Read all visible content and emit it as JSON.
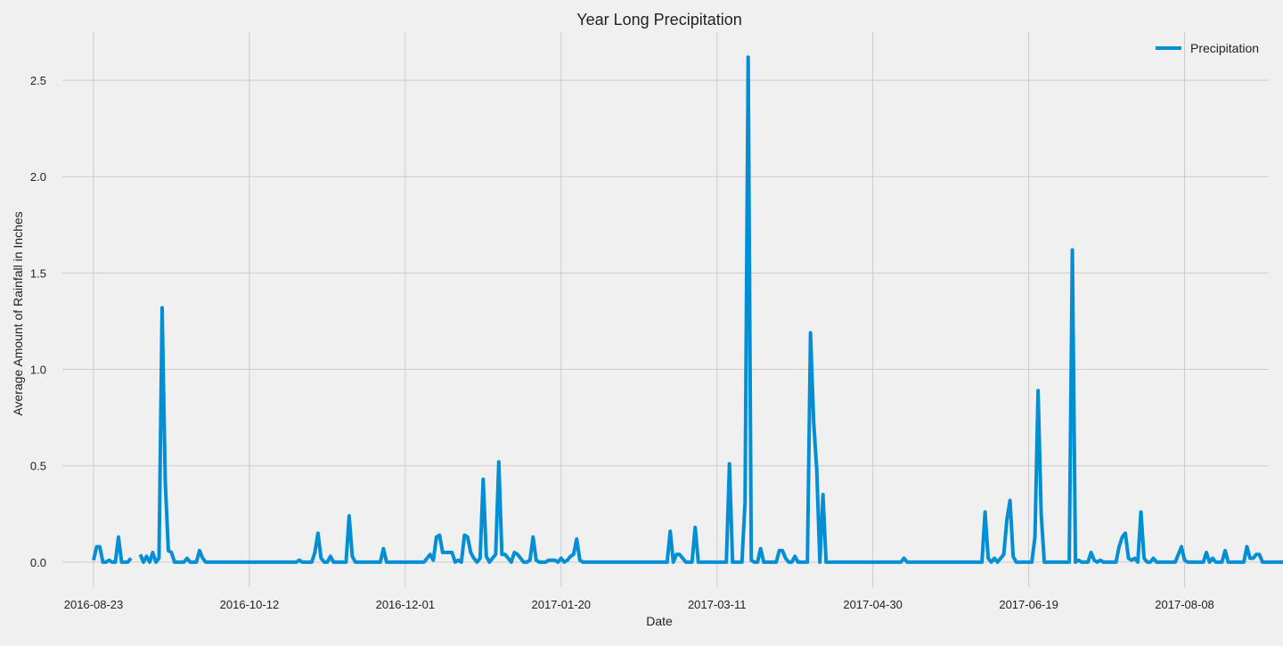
{
  "chart_data": {
    "type": "line",
    "title": "Year Long Precipitation",
    "xlabel": "Date",
    "ylabel": "Average Amount of Rainfall in Inches",
    "x_range": [
      "2016-08-13",
      "2017-09-04"
    ],
    "ylim": [
      -0.13,
      2.75
    ],
    "x_ticks": [
      "2016-08-23",
      "2016-10-12",
      "2016-12-01",
      "2017-01-20",
      "2017-03-11",
      "2017-04-30",
      "2017-06-19",
      "2017-08-08"
    ],
    "y_ticks": [
      "0.0",
      "0.5",
      "1.0",
      "1.5",
      "2.0",
      "2.5"
    ],
    "grid": true,
    "legend_position": "top-right",
    "color": "#008fd5",
    "series": [
      {
        "name": "Precipitation",
        "segments": [
          {
            "start": "2016-08-23",
            "values": [
              0.01,
              0.08,
              0.08,
              0.0,
              0.0,
              0.01,
              0.0,
              0.0,
              0.13,
              0.0,
              0.0,
              0.0,
              0.02
            ]
          },
          {
            "start": "2016-09-07",
            "values": [
              0.04,
              0.0,
              0.03,
              0.0,
              0.05,
              0.0,
              0.02,
              1.32,
              0.42,
              0.06,
              0.05,
              0.0,
              0.0,
              0.0,
              0.0,
              0.02,
              0.0,
              0.0,
              0.0,
              0.06,
              0.02,
              0.0,
              0.0,
              0.0,
              0.0,
              0.0,
              0.0,
              0.0,
              0.0,
              0.0,
              0.0,
              0.0,
              0.0,
              0.0,
              0.0,
              0.0,
              0.0,
              0.0,
              0.0,
              0.0,
              0.0,
              0.0,
              0.0,
              0.0,
              0.0,
              0.0,
              0.0,
              0.0,
              0.0,
              0.0,
              0.0,
              0.01,
              0.0,
              0.0,
              0.0,
              0.0,
              0.05,
              0.15,
              0.02,
              0.0,
              0.0,
              0.03,
              0.0,
              0.0,
              0.0,
              0.0,
              0.0,
              0.24,
              0.03,
              0.0,
              0.0,
              0.0,
              0.0,
              0.0,
              0.0,
              0.0,
              0.0,
              0.0,
              0.07,
              0.0,
              0.0,
              0.0,
              0.0,
              0.0,
              0.0,
              0.0,
              0.0,
              0.0,
              0.0,
              0.0,
              0.0,
              0.0,
              0.02,
              0.04,
              0.01,
              0.13,
              0.14,
              0.05,
              0.05,
              0.05,
              0.05,
              0.0,
              0.01,
              0.0,
              0.14,
              0.13,
              0.05,
              0.02,
              0.0,
              0.02,
              0.43,
              0.03,
              0.0,
              0.02,
              0.04,
              0.52,
              0.04,
              0.04,
              0.02,
              0.0,
              0.05,
              0.04,
              0.02,
              0.0,
              0.0,
              0.01,
              0.13,
              0.01,
              0.0,
              0.0,
              0.0,
              0.01,
              0.01,
              0.01,
              0.0,
              0.02,
              0.0,
              0.01,
              0.03,
              0.04,
              0.12,
              0.01,
              0.0,
              0.0,
              0.0,
              0.0,
              0.0,
              0.0,
              0.0,
              0.0,
              0.0,
              0.0,
              0.0,
              0.0,
              0.0,
              0.0,
              0.0,
              0.0,
              0.0,
              0.0,
              0.0,
              0.0,
              0.0,
              0.0,
              0.0,
              0.0,
              0.0,
              0.0,
              0.0,
              0.0,
              0.16,
              0.0,
              0.04,
              0.04,
              0.02,
              0.0,
              0.0,
              0.0,
              0.18,
              0.0,
              0.0,
              0.0,
              0.0,
              0.0,
              0.0,
              0.0,
              0.0,
              0.0,
              0.0,
              0.51,
              0.0,
              0.0,
              0.0,
              0.0,
              0.31,
              2.62,
              0.01,
              0.0,
              0.0,
              0.07,
              0.0,
              0.0,
              0.0,
              0.0,
              0.0,
              0.06,
              0.06,
              0.02,
              0.0,
              0.0,
              0.03,
              0.0,
              0.0,
              0.0,
              0.0,
              1.19,
              0.73,
              0.48,
              0.0,
              0.35,
              0.0,
              0.0,
              0.0,
              0.0,
              0.0,
              0.0,
              0.0,
              0.0,
              0.0,
              0.0,
              0.0,
              0.0,
              0.0,
              0.0,
              0.0,
              0.0,
              0.0,
              0.0,
              0.0,
              0.0,
              0.0,
              0.0,
              0.0,
              0.0,
              0.0,
              0.02,
              0.0,
              0.0,
              0.0,
              0.0,
              0.0,
              0.0,
              0.0,
              0.0,
              0.0,
              0.0,
              0.0,
              0.0,
              0.0,
              0.0,
              0.0,
              0.0,
              0.0,
              0.0,
              0.0,
              0.0,
              0.0,
              0.0,
              0.0,
              0.0,
              0.0,
              0.26,
              0.02,
              0.0,
              0.02,
              0.0,
              0.02,
              0.04,
              0.22,
              0.32,
              0.03,
              0.0,
              0.0,
              0.0,
              0.0,
              0.0,
              0.0,
              0.13,
              0.89,
              0.25,
              0.0,
              0.0,
              0.0,
              0.0,
              0.0,
              0.0,
              0.0,
              0.0,
              0.0,
              1.62,
              0.0,
              0.01,
              0.0,
              0.0,
              0.0,
              0.05,
              0.01,
              0.0,
              0.01,
              0.0,
              0.0,
              0.0,
              0.0,
              0.0,
              0.08,
              0.13,
              0.15,
              0.02,
              0.01,
              0.02,
              0.0,
              0.26,
              0.02,
              0.0,
              0.0,
              0.02,
              0.0,
              0.0,
              0.0,
              0.0,
              0.0,
              0.0,
              0.0,
              0.04,
              0.08,
              0.01,
              0.0,
              0.0,
              0.0,
              0.0,
              0.0,
              0.0,
              0.05,
              0.0,
              0.02,
              0.0,
              0.0,
              0.0,
              0.06,
              0.0,
              0.0,
              0.0,
              0.0,
              0.0,
              0.0,
              0.08,
              0.02,
              0.02,
              0.04,
              0.04,
              0.0,
              0.0,
              0.0,
              0.0,
              0.0,
              0.0,
              0.0,
              0.0,
              0.0,
              0.0,
              0.0,
              0.07,
              0.02,
              0.0,
              0.02,
              0.03,
              0.05,
              0.0,
              0.03,
              0.0,
              0.03,
              0.0,
              0.05,
              0.0,
              0.0,
              0.0,
              0.0,
              0.0,
              0.0,
              0.0,
              0.0,
              0.0,
              0.02,
              0.0,
              0.0,
              0.02,
              0.0,
              0.0,
              0.0,
              0.0,
              0.0,
              0.0,
              0.0,
              0.0,
              0.0,
              0.0,
              0.0,
              0.02,
              0.0,
              0.0,
              0.0,
              0.0,
              0.0,
              0.0,
              0.0,
              0.0
            ]
          }
        ]
      }
    ]
  }
}
